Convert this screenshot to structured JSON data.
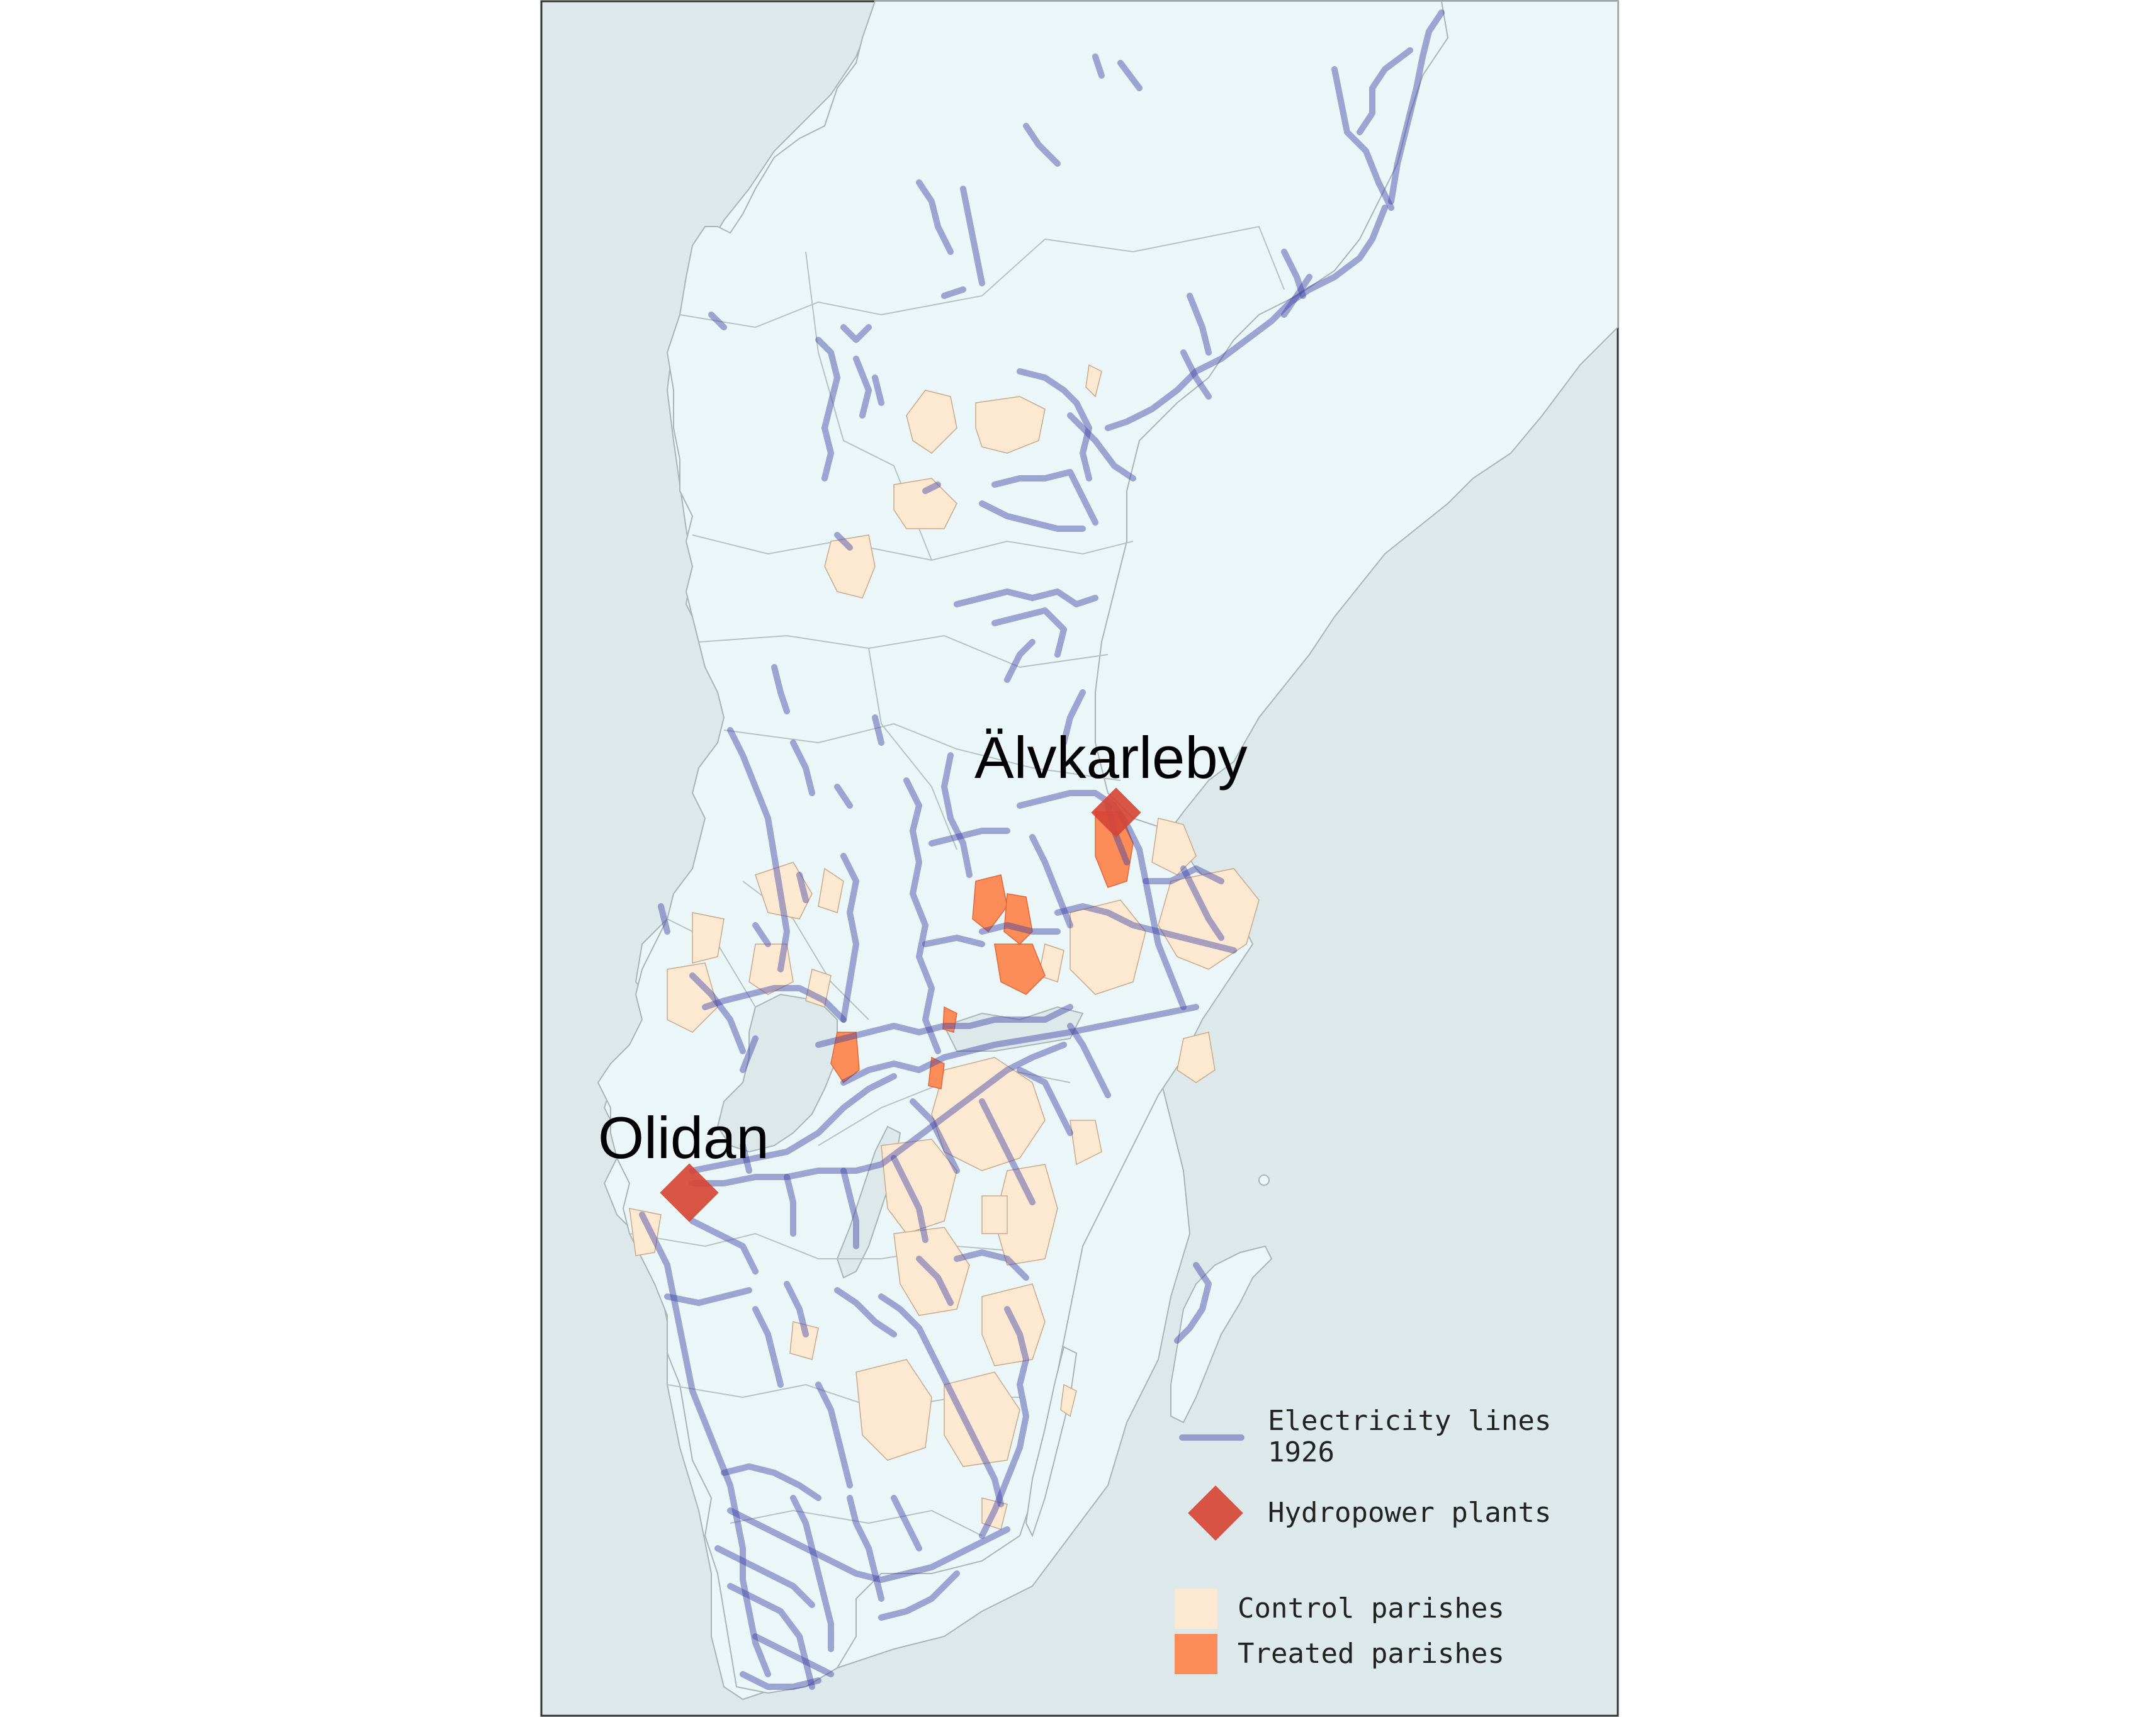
{
  "map": {
    "colors": {
      "sea": "#dce8ea",
      "land": "#eaf6f8",
      "border": "#a9b4b7",
      "electricity_line": "#3f43a3",
      "hydropower": "#d64534",
      "control": "#fde8d2",
      "treated": "#fc8d59"
    },
    "labels": {
      "alvkarleby": "Älvkarleby",
      "olidan": "Olidan"
    }
  },
  "legend": {
    "electricity_line1": "Electricity lines",
    "electricity_line2": "1926",
    "hydropower": "Hydropower plants",
    "control": "Control parishes",
    "treated": "Treated parishes"
  }
}
